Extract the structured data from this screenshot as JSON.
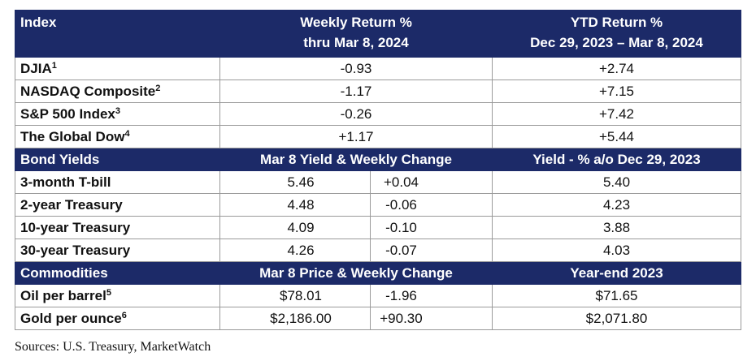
{
  "index_section": {
    "header": {
      "label": "Index",
      "weekly": [
        "Weekly Return %",
        "thru Mar 8, 2024"
      ],
      "ytd": [
        "YTD Return %",
        "Dec 29, 2023 – Mar 8, 2024"
      ]
    },
    "rows": [
      {
        "label": "DJIA",
        "note": "1",
        "weekly": "-0.93",
        "ytd": "+2.74"
      },
      {
        "label": "NASDAQ Composite",
        "note": "2",
        "weekly": "-1.17",
        "ytd": "+7.15"
      },
      {
        "label": "S&P 500 Index",
        "note": "3",
        "weekly": "-0.26",
        "ytd": "+7.42"
      },
      {
        "label": "The Global Dow",
        "note": "4",
        "weekly": "+1.17",
        "ytd": "+5.44"
      }
    ]
  },
  "bond_section": {
    "header": {
      "label": "Bond Yields",
      "current": "Mar 8 Yield & Weekly Change",
      "prior": "Yield - % a/o Dec 29, 2023"
    },
    "rows": [
      {
        "label": "3-month T-bill",
        "value": "5.46",
        "change": "+0.04",
        "prior": "5.40"
      },
      {
        "label": "2-year Treasury",
        "value": "4.48",
        "change": "-0.06",
        "prior": "4.23"
      },
      {
        "label": "10-year Treasury",
        "value": "4.09",
        "change": "-0.10",
        "prior": "3.88"
      },
      {
        "label": "30-year Treasury",
        "value": "4.26",
        "change": "-0.07",
        "prior": "4.03"
      }
    ]
  },
  "commodity_section": {
    "header": {
      "label": "Commodities",
      "current": "Mar 8 Price & Weekly Change",
      "prior": "Year-end 2023"
    },
    "rows": [
      {
        "label": "Oil per barrel",
        "note": "5",
        "value": "$78.01",
        "change": "-1.96",
        "prior": "$71.65"
      },
      {
        "label": "Gold per ounce",
        "note": "6",
        "value": "$2,186.00",
        "change": "+90.30",
        "prior": "$2,071.80"
      }
    ]
  },
  "footer": {
    "source": "Sources: U.S. Treasury, MarketWatch"
  }
}
